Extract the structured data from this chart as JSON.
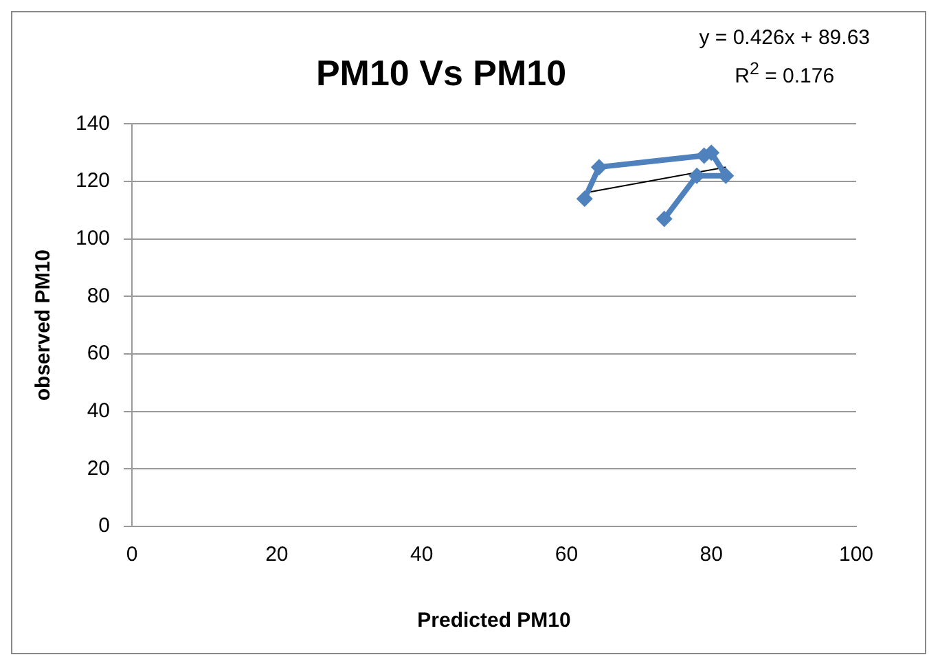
{
  "chart_data": {
    "type": "scatter",
    "title": "PM10 Vs PM10",
    "xlabel": "Predicted PM10",
    "ylabel": "observed PM10",
    "annotations": [
      "y = 0.426x + 89.63",
      "R$^{2}$ = 0.176"
    ],
    "series": [
      {
        "type": "line",
        "color": "#4f81bd",
        "marker": "diamond",
        "x": [
          62.5,
          64.5,
          79,
          80,
          82,
          78,
          73.5
        ],
        "values": [
          114,
          125,
          129,
          130,
          122,
          122,
          107
        ]
      },
      {
        "type": "line",
        "color": "#000000",
        "marker": "none",
        "x": [
          62.5,
          82
        ],
        "values": [
          116,
          125
        ]
      }
    ],
    "xlim": [
      0,
      100
    ],
    "xticks": [
      0,
      20,
      40,
      60,
      80,
      100
    ],
    "ylim": [
      0,
      140
    ],
    "yticks": [
      0,
      20,
      40,
      60,
      80,
      100,
      120,
      140
    ],
    "grid": "y",
    "legend": false
  }
}
